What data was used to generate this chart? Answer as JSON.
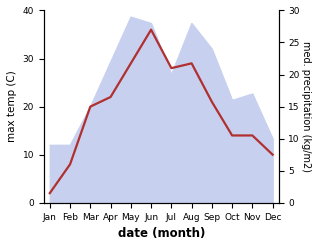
{
  "months": [
    "Jan",
    "Feb",
    "Mar",
    "Apr",
    "May",
    "Jun",
    "Jul",
    "Aug",
    "Sep",
    "Oct",
    "Nov",
    "Dec"
  ],
  "temperature": [
    2,
    8,
    20,
    22,
    29,
    36,
    28,
    29,
    21,
    14,
    14,
    10
  ],
  "precipitation": [
    9,
    9,
    15,
    22,
    29,
    28,
    20,
    28,
    24,
    16,
    17,
    10
  ],
  "temp_color": "#b03030",
  "precip_fill_color": "#c8d0f0",
  "temp_ylim": [
    0,
    40
  ],
  "precip_ylim": [
    0,
    30
  ],
  "temp_yticks": [
    0,
    10,
    20,
    30,
    40
  ],
  "precip_yticks": [
    0,
    5,
    10,
    15,
    20,
    25,
    30
  ],
  "ylabel_left": "max temp (C)",
  "ylabel_right": "med. precipitation (kg/m2)",
  "xlabel": "date (month)",
  "fig_width": 3.18,
  "fig_height": 2.47,
  "dpi": 100
}
